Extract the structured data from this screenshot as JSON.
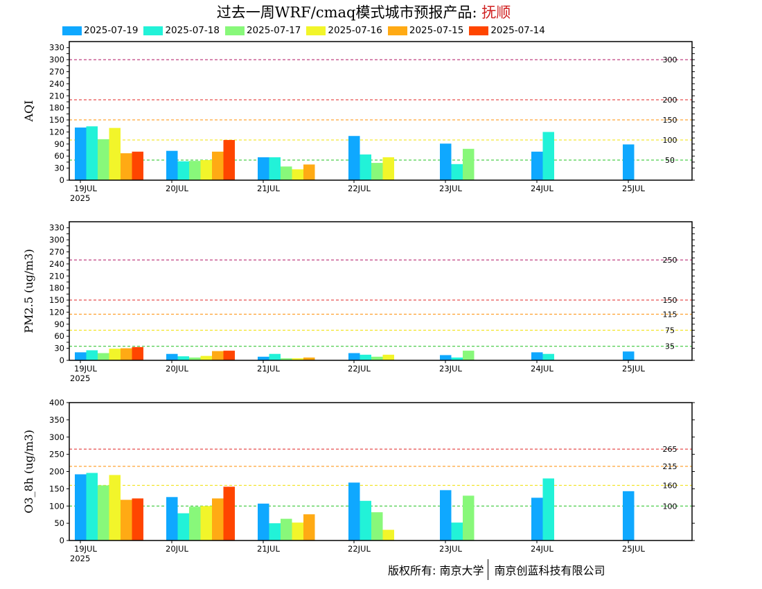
{
  "title": {
    "main": "过去一周WRF/cmaq模式城市预报产品: ",
    "city": "抚顺"
  },
  "legend": [
    {
      "label": "2025-07-19",
      "color": "#0fa8ff"
    },
    {
      "label": "2025-07-18",
      "color": "#22f2d8"
    },
    {
      "label": "2025-07-17",
      "color": "#88f87a"
    },
    {
      "label": "2025-07-16",
      "color": "#f2f52a"
    },
    {
      "label": "2025-07-15",
      "color": "#ffaa14"
    },
    {
      "label": "2025-07-14",
      "color": "#ff4500"
    }
  ],
  "footer": {
    "left": "版权所有: 南京大学",
    "right": "南京创蓝科技有限公司"
  },
  "chart_data": [
    {
      "type": "bar",
      "ylabel": "AQI",
      "ylim": [
        0,
        345
      ],
      "yticks": [
        0,
        30,
        45,
        60,
        75,
        90,
        105,
        120,
        135,
        150,
        165,
        180,
        195,
        210,
        225,
        240,
        255,
        270,
        285,
        300,
        315,
        330
      ],
      "ytick_labels": [
        "0",
        "30",
        "",
        "60",
        "",
        "90",
        "",
        "120",
        "",
        "150",
        "",
        "180",
        "",
        "210",
        "",
        "240",
        "",
        "270",
        "",
        "300",
        "",
        "330"
      ],
      "categories": [
        "19JUL",
        "20JUL",
        "21JUL",
        "22JUL",
        "23JUL",
        "24JUL",
        "25JUL"
      ],
      "year_label": "2025",
      "reference_lines": [
        {
          "value": 300,
          "label": "300",
          "color": "#b01060"
        },
        {
          "value": 200,
          "label": "200",
          "color": "#e02020"
        },
        {
          "value": 150,
          "label": "150",
          "color": "#ff8c00"
        },
        {
          "value": 100,
          "label": "100",
          "color": "#f0e000"
        },
        {
          "value": 50,
          "label": "50",
          "color": "#1ec01e"
        }
      ],
      "series": [
        {
          "name": "2025-07-19",
          "values": [
            131,
            73,
            57,
            110,
            91,
            71,
            89
          ]
        },
        {
          "name": "2025-07-18",
          "values": [
            134,
            47,
            57,
            64,
            40,
            120,
            null
          ]
        },
        {
          "name": "2025-07-17",
          "values": [
            102,
            48,
            34,
            43,
            78,
            null,
            null
          ]
        },
        {
          "name": "2025-07-16",
          "values": [
            130,
            50,
            27,
            57,
            null,
            null,
            null
          ]
        },
        {
          "name": "2025-07-15",
          "values": [
            67,
            71,
            39,
            null,
            null,
            null,
            null
          ]
        },
        {
          "name": "2025-07-14",
          "values": [
            71,
            100,
            null,
            null,
            null,
            null,
            null
          ]
        }
      ]
    },
    {
      "type": "bar",
      "ylabel": "PM2.5 (ug/m3)",
      "ylim": [
        0,
        345
      ],
      "yticks": [
        0,
        30,
        45,
        60,
        75,
        90,
        105,
        120,
        135,
        150,
        165,
        180,
        195,
        210,
        225,
        240,
        255,
        270,
        285,
        300,
        315,
        330
      ],
      "ytick_labels": [
        "0",
        "30",
        "",
        "60",
        "",
        "90",
        "",
        "120",
        "",
        "150",
        "",
        "180",
        "",
        "210",
        "",
        "240",
        "",
        "270",
        "",
        "300",
        "",
        "330"
      ],
      "categories": [
        "19JUL",
        "20JUL",
        "21JUL",
        "22JUL",
        "23JUL",
        "24JUL",
        "25JUL"
      ],
      "year_label": "2025",
      "reference_lines": [
        {
          "value": 250,
          "label": "250",
          "color": "#b01060"
        },
        {
          "value": 150,
          "label": "150",
          "color": "#e02020"
        },
        {
          "value": 115,
          "label": "115",
          "color": "#ff8c00"
        },
        {
          "value": 75,
          "label": "75",
          "color": "#f0e000"
        },
        {
          "value": 35,
          "label": "35",
          "color": "#1ec01e"
        }
      ],
      "series": [
        {
          "name": "2025-07-19",
          "values": [
            20,
            16,
            9,
            18,
            13,
            20,
            22
          ]
        },
        {
          "name": "2025-07-18",
          "values": [
            25,
            10,
            16,
            14,
            7,
            16,
            null
          ]
        },
        {
          "name": "2025-07-17",
          "values": [
            18,
            7,
            5,
            9,
            24,
            null,
            null
          ]
        },
        {
          "name": "2025-07-16",
          "values": [
            29,
            11,
            5,
            14,
            null,
            null,
            null
          ]
        },
        {
          "name": "2025-07-15",
          "values": [
            30,
            23,
            7,
            null,
            null,
            null,
            null
          ]
        },
        {
          "name": "2025-07-14",
          "values": [
            33,
            24,
            null,
            null,
            null,
            null,
            null
          ]
        }
      ]
    },
    {
      "type": "bar",
      "ylabel": "O3_8h (ug/m3)",
      "ylim": [
        0,
        400
      ],
      "yticks": [
        0,
        50,
        100,
        150,
        200,
        250,
        300,
        350,
        400
      ],
      "ytick_labels": [
        "0",
        "50",
        "100",
        "150",
        "200",
        "250",
        "300",
        "350",
        "400"
      ],
      "categories": [
        "19JUL",
        "20JUL",
        "21JUL",
        "22JUL",
        "23JUL",
        "24JUL",
        "25JUL"
      ],
      "year_label": "2025",
      "reference_lines": [
        {
          "value": 265,
          "label": "265",
          "color": "#e02020"
        },
        {
          "value": 215,
          "label": "215",
          "color": "#ff8c00"
        },
        {
          "value": 160,
          "label": "160",
          "color": "#f0e000"
        },
        {
          "value": 100,
          "label": "100",
          "color": "#1ec01e"
        }
      ],
      "series": [
        {
          "name": "2025-07-19",
          "values": [
            192,
            126,
            107,
            168,
            146,
            124,
            143
          ]
        },
        {
          "name": "2025-07-18",
          "values": [
            196,
            79,
            50,
            115,
            52,
            180,
            null
          ]
        },
        {
          "name": "2025-07-17",
          "values": [
            160,
            98,
            63,
            82,
            130,
            null,
            null
          ]
        },
        {
          "name": "2025-07-16",
          "values": [
            190,
            100,
            52,
            31,
            null,
            null,
            null
          ]
        },
        {
          "name": "2025-07-15",
          "values": [
            118,
            122,
            76,
            null,
            null,
            null,
            null
          ]
        },
        {
          "name": "2025-07-14",
          "values": [
            122,
            156,
            null,
            null,
            null,
            null,
            null
          ]
        }
      ]
    }
  ]
}
